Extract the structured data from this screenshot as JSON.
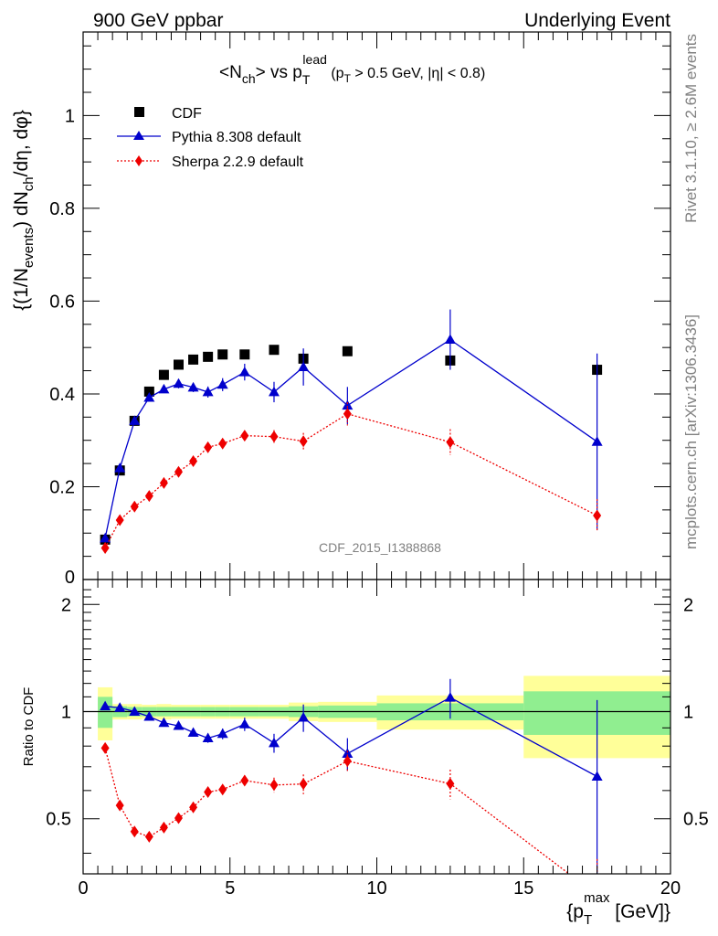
{
  "header": {
    "left": "900 GeV ppbar",
    "right": "Underlying Event"
  },
  "side_labels": {
    "rivet": "Rivet 3.1.10, ≥ 2.6M events",
    "mcplots": "mcplots.cern.ch [arXiv:1306.3436]"
  },
  "chart_data": {
    "type": "line",
    "title_parts": {
      "a": "<N",
      "a_sub": "ch",
      "b": "> vs p",
      "b_sub": "T",
      "b_sup": "lead",
      "c": " (p",
      "c_sub": "T",
      "d": " > 0.5 GeV, |η| < 0.8)"
    },
    "ylabel_parts": {
      "a": "{(1/N",
      "a_sub": "events",
      "b": ") dN",
      "b_sub": "ch",
      "c": "/dη, dφ}"
    },
    "xlabel_parts": {
      "a": "{p",
      "a_sub": "T",
      "a_sup": "max",
      "b": " [GeV]}"
    },
    "ratio_ylabel": "Ratio to CDF",
    "watermark": "CDF_2015_I1388868",
    "xlim": [
      0,
      20
    ],
    "ylim_main": [
      0,
      1.18
    ],
    "ylim_ratio": [
      0.35,
      2.35
    ],
    "ratio_log": true,
    "x_ticks": [
      0,
      5,
      10,
      15,
      20
    ],
    "x_tick_labels": [
      "0",
      "5",
      "10",
      "15",
      "20"
    ],
    "main_y_ticks": [
      0,
      0.2,
      0.4,
      0.6,
      0.8,
      1
    ],
    "main_y_tick_labels": [
      "0",
      "0.2",
      "0.4",
      "0.6",
      "0.8",
      "1"
    ],
    "ratio_y_ticks": [
      0.5,
      1,
      2
    ],
    "ratio_y_tick_labels": [
      "0.5",
      "1",
      "2"
    ],
    "legend": [
      "CDF",
      "Pythia 8.308 default",
      "Sherpa 2.2.9 default"
    ],
    "legend_position": "top-left",
    "series": [
      {
        "name": "CDF",
        "color": "#000000",
        "marker": "square",
        "x": [
          0.75,
          1.25,
          1.75,
          2.25,
          2.75,
          3.25,
          3.75,
          4.25,
          4.75,
          5.5,
          6.5,
          7.5,
          9.0,
          12.5,
          17.5
        ],
        "y": [
          0.086,
          0.235,
          0.342,
          0.405,
          0.441,
          0.463,
          0.474,
          0.48,
          0.485,
          0.485,
          0.495,
          0.476,
          0.492,
          0.472,
          0.452
        ],
        "err": [
          0.003,
          0.004,
          0.005,
          0.005,
          0.005,
          0.005,
          0.005,
          0.005,
          0.005,
          0.005,
          0.006,
          0.006,
          0.007,
          0.008,
          0.012
        ]
      },
      {
        "name": "Pythia 8.308 default",
        "color": "#0000cc",
        "marker": "triangle",
        "x": [
          0.75,
          1.25,
          1.75,
          2.25,
          2.75,
          3.25,
          3.75,
          4.25,
          4.75,
          5.5,
          6.5,
          7.5,
          9.0,
          12.5,
          17.5
        ],
        "y": [
          0.089,
          0.24,
          0.342,
          0.392,
          0.41,
          0.422,
          0.414,
          0.404,
          0.42,
          0.447,
          0.404,
          0.458,
          0.375,
          0.517,
          0.297
        ],
        "err": [
          0.002,
          0.004,
          0.006,
          0.008,
          0.008,
          0.01,
          0.01,
          0.012,
          0.014,
          0.018,
          0.022,
          0.04,
          0.04,
          0.065,
          0.19
        ]
      },
      {
        "name": "Sherpa 2.2.9 default",
        "color": "#ee0000",
        "marker": "diamond",
        "x": [
          0.75,
          1.25,
          1.75,
          2.25,
          2.75,
          3.25,
          3.75,
          4.25,
          4.75,
          5.5,
          6.5,
          7.5,
          9.0,
          12.5,
          17.5
        ],
        "y": [
          0.068,
          0.128,
          0.157,
          0.18,
          0.208,
          0.232,
          0.255,
          0.285,
          0.293,
          0.31,
          0.308,
          0.298,
          0.357,
          0.296,
          0.138
        ],
        "err": [
          0.002,
          0.003,
          0.004,
          0.005,
          0.006,
          0.006,
          0.007,
          0.007,
          0.008,
          0.01,
          0.014,
          0.018,
          0.025,
          0.028,
          0.035
        ]
      }
    ],
    "ratio_series": [
      {
        "name": "Pythia 8.308 default",
        "color": "#0000cc",
        "marker": "triangle",
        "x": [
          0.75,
          1.25,
          1.75,
          2.25,
          2.75,
          3.25,
          3.75,
          4.25,
          4.75,
          5.5,
          6.5,
          7.5,
          9.0,
          12.5,
          17.5
        ],
        "y": [
          1.035,
          1.025,
          1.0,
          0.968,
          0.93,
          0.912,
          0.873,
          0.842,
          0.866,
          0.922,
          0.816,
          0.962,
          0.762,
          1.095,
          0.657
        ],
        "err": [
          0.02,
          0.02,
          0.02,
          0.02,
          0.02,
          0.02,
          0.02,
          0.025,
          0.03,
          0.04,
          0.05,
          0.085,
          0.08,
          0.14,
          0.42
        ]
      },
      {
        "name": "Sherpa 2.2.9 default",
        "color": "#ee0000",
        "marker": "diamond",
        "x": [
          0.75,
          1.25,
          1.75,
          2.25,
          2.75,
          3.25,
          3.75,
          4.25,
          4.75,
          5.5,
          6.5,
          7.5,
          9.0,
          12.5,
          17.5
        ],
        "y": [
          0.79,
          0.545,
          0.46,
          0.445,
          0.472,
          0.502,
          0.538,
          0.594,
          0.604,
          0.64,
          0.622,
          0.626,
          0.726,
          0.627,
          0.305
        ],
        "err": [
          0.02,
          0.015,
          0.012,
          0.012,
          0.013,
          0.014,
          0.016,
          0.016,
          0.018,
          0.022,
          0.03,
          0.04,
          0.05,
          0.06,
          0.08
        ]
      }
    ],
    "uncertainty_bands": {
      "bin_edges": [
        0.5,
        1.0,
        1.5,
        2.0,
        2.5,
        3.0,
        3.5,
        4.0,
        4.5,
        5.0,
        6.0,
        7.0,
        8.0,
        10.0,
        15.0,
        20.0
      ],
      "stat_lo": [
        0.9,
        0.965,
        0.97,
        0.97,
        0.97,
        0.97,
        0.97,
        0.97,
        0.97,
        0.97,
        0.97,
        0.965,
        0.96,
        0.945,
        0.86
      ],
      "stat_hi": [
        1.1,
        1.035,
        1.03,
        1.03,
        1.03,
        1.03,
        1.03,
        1.03,
        1.03,
        1.03,
        1.03,
        1.035,
        1.04,
        1.055,
        1.14
      ],
      "total_lo": [
        0.83,
        0.95,
        0.95,
        0.955,
        0.95,
        0.955,
        0.955,
        0.955,
        0.955,
        0.955,
        0.955,
        0.94,
        0.935,
        0.89,
        0.74
      ],
      "total_hi": [
        1.17,
        1.05,
        1.05,
        1.045,
        1.05,
        1.045,
        1.045,
        1.045,
        1.045,
        1.045,
        1.045,
        1.06,
        1.065,
        1.11,
        1.26
      ],
      "stat_color": "#90ee90",
      "total_color": "#ffff99"
    }
  }
}
